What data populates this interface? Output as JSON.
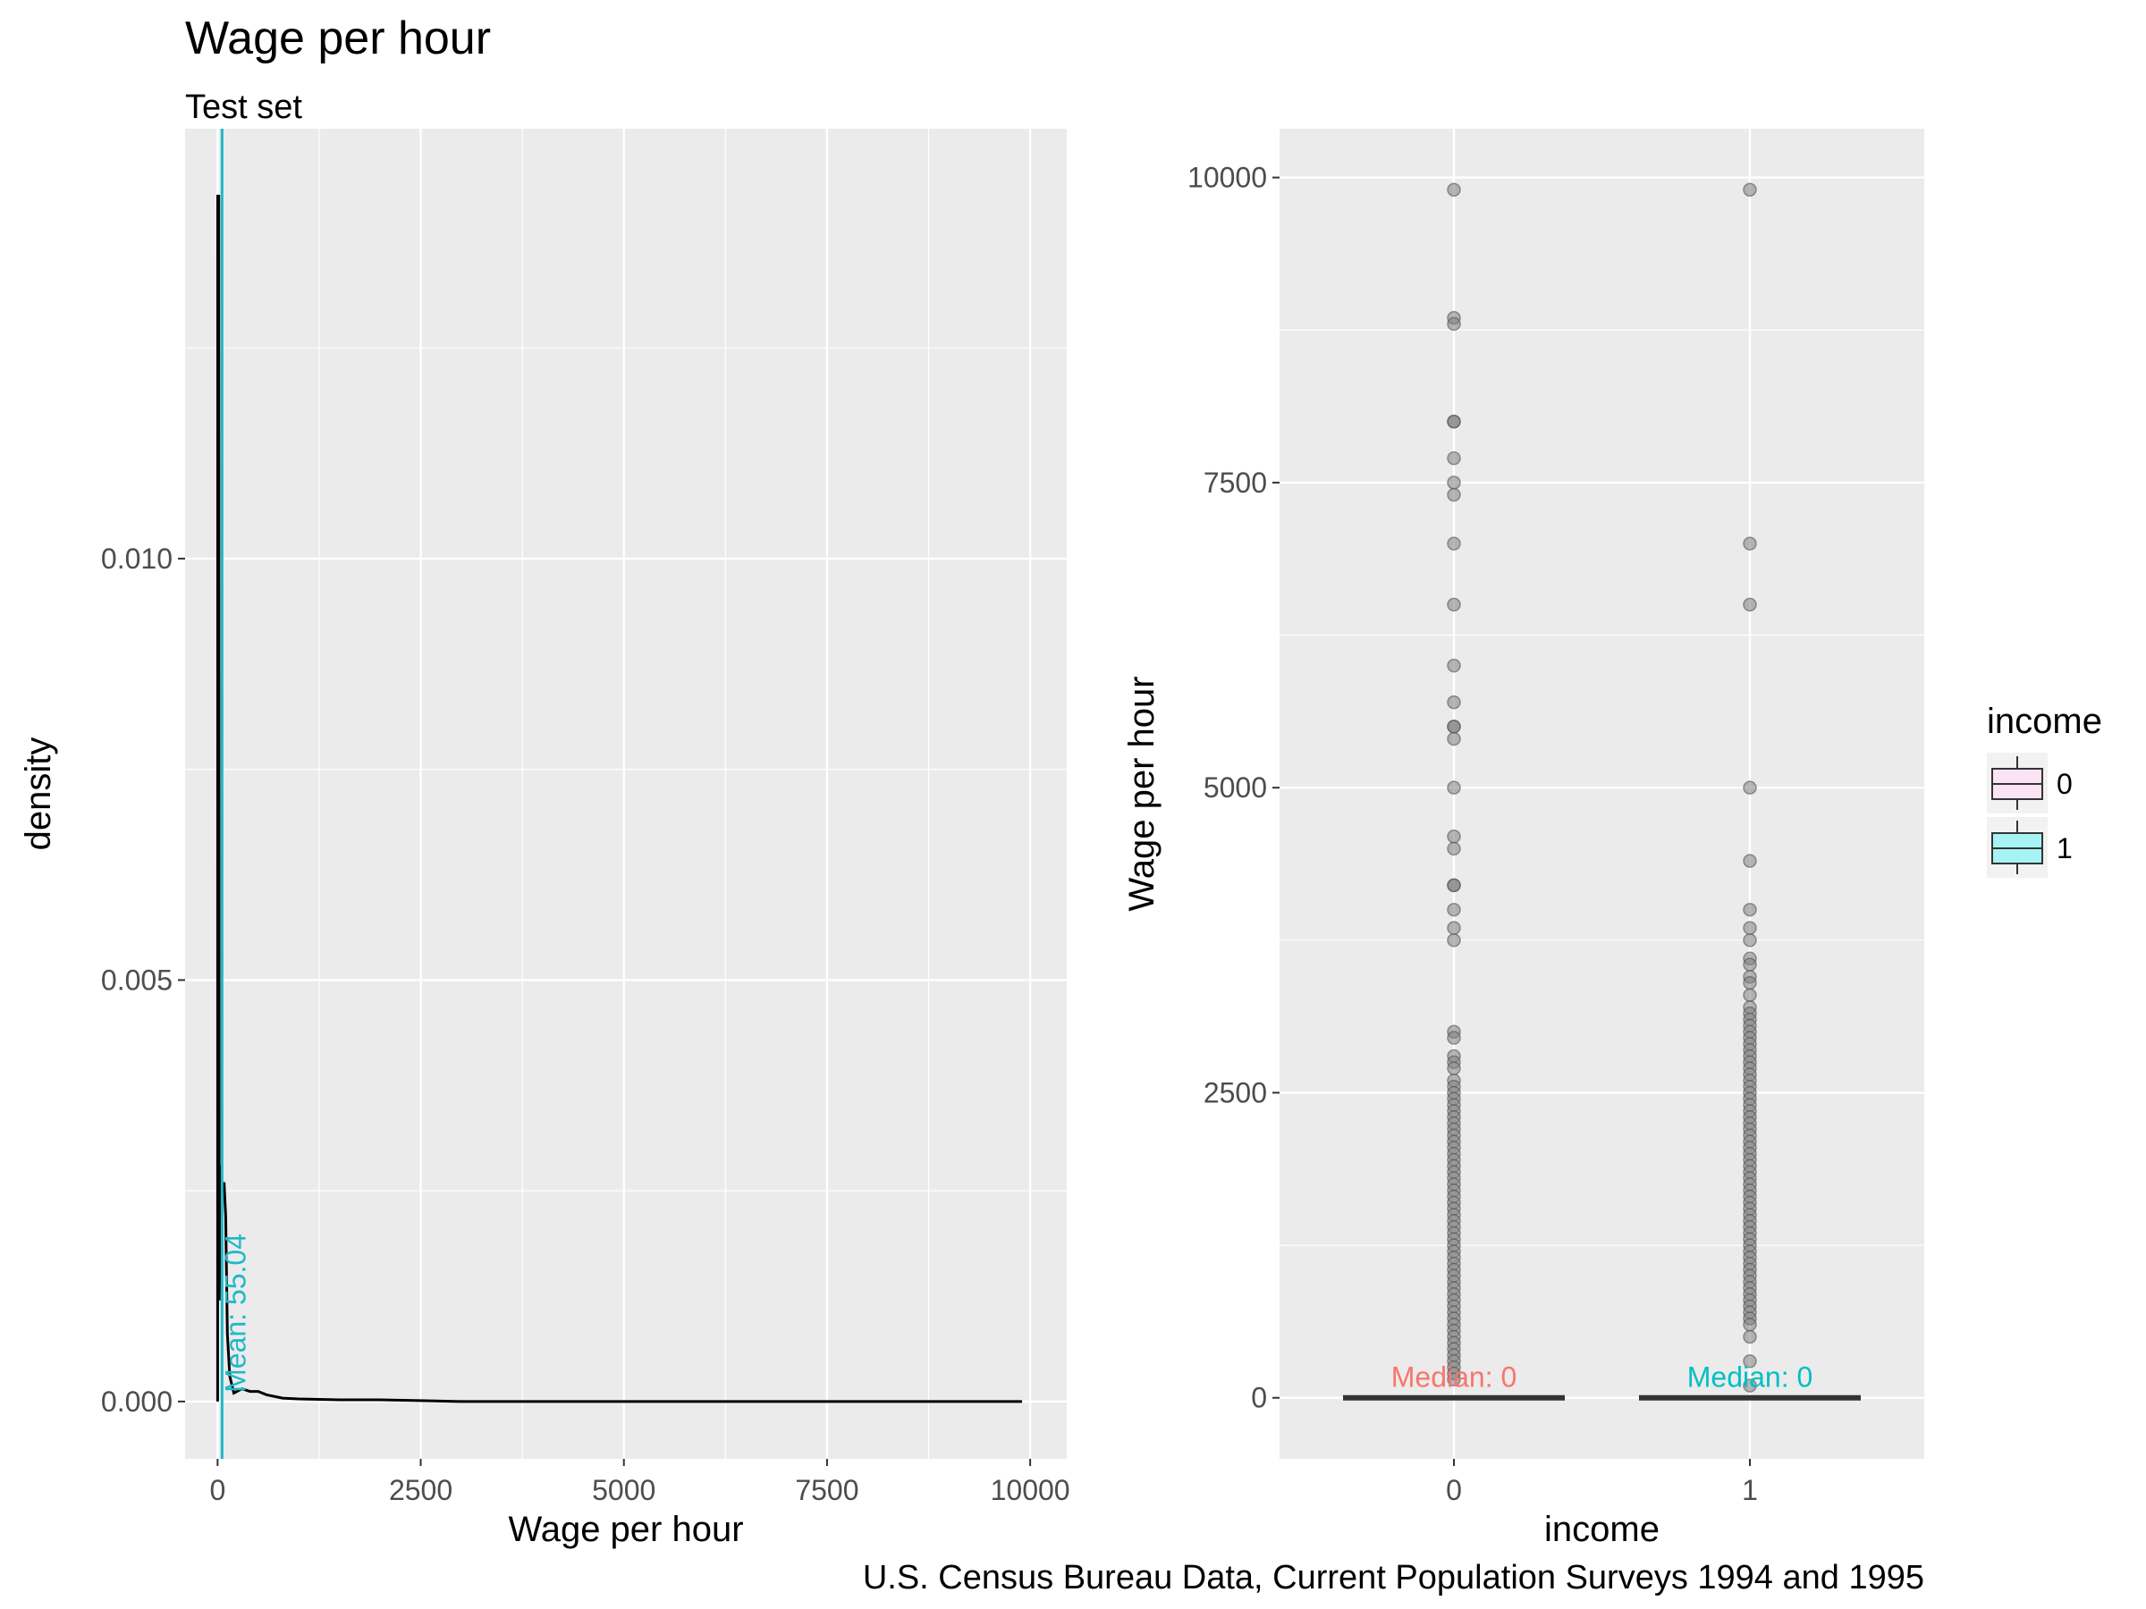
{
  "title": "Wage per hour",
  "subtitle": "Test set",
  "caption": "U.S. Census Bureau Data, Current Population Surveys 1994 and 1995",
  "chart_data": [
    {
      "type": "density",
      "xlabel": "Wage per hour",
      "ylabel": "density",
      "xlim": [
        -400,
        10450
      ],
      "ylim": [
        -0.00068,
        0.0151
      ],
      "x_ticks": [
        0,
        2500,
        5000,
        7500,
        10000
      ],
      "x_tick_labels": [
        "0",
        "2500",
        "5000",
        "7500",
        "10000"
      ],
      "y_ticks": [
        0.0,
        0.005,
        0.01
      ],
      "y_tick_labels": [
        "0.000",
        "0.005",
        "0.010"
      ],
      "grid": true,
      "density_curve": {
        "x": [
          0,
          2,
          5,
          8,
          10,
          15,
          20,
          40,
          60,
          80,
          100,
          120,
          150,
          200,
          300,
          400,
          500,
          600,
          800,
          1000,
          1500,
          2000,
          2500,
          3000,
          5000,
          7500,
          9900
        ],
        "y": [
          0.0,
          0.0143,
          0.0143,
          0.0025,
          0.0143,
          0.0143,
          0.0012,
          0.0028,
          0.0025,
          0.0026,
          0.0022,
          0.0008,
          0.0003,
          0.0001,
          0.00015,
          0.00012,
          0.00012,
          8e-05,
          4e-05,
          3e-05,
          2e-05,
          2e-05,
          1e-05,
          0.0,
          0.0,
          0.0,
          0.0
        ]
      },
      "mean_line": {
        "value": 55.04,
        "label": "Mean: 55.04",
        "color": "#1fb8c8"
      },
      "colors": {
        "curve": "#000000",
        "mean": "#1fb8c8",
        "panel": "#ebebeb",
        "grid": "#ffffff"
      }
    },
    {
      "type": "boxplot",
      "xlabel": "income",
      "ylabel": "Wage per hour",
      "categories": [
        "0",
        "1"
      ],
      "ylim": [
        -500,
        10400
      ],
      "y_ticks": [
        0,
        2500,
        5000,
        7500,
        10000
      ],
      "y_tick_labels": [
        "0",
        "2500",
        "5000",
        "7500",
        "10000"
      ],
      "grid": true,
      "boxes": [
        {
          "category": "0",
          "min": 0,
          "q1": 0,
          "median": 0,
          "q3": 0,
          "max": 0,
          "median_label": "Median: 0",
          "label_color": "#f8766d"
        },
        {
          "category": "1",
          "min": 0,
          "q1": 0,
          "median": 0,
          "q3": 0,
          "max": 0,
          "median_label": "Median: 0",
          "label_color": "#00bfc4"
        }
      ],
      "outliers": [
        {
          "category": "0",
          "values": [
            9900,
            8850,
            8800,
            8000,
            8000,
            7700,
            7500,
            7400,
            7000,
            6500,
            6000,
            5700,
            5500,
            5500,
            5400,
            5000,
            4600,
            4500,
            4200,
            4200,
            4000,
            3850,
            3750,
            3000,
            2950,
            2800,
            2750,
            2700,
            2600,
            2550,
            2500,
            2450,
            2400,
            2350,
            2300,
            2250,
            2200,
            2150,
            2100,
            2050,
            2000,
            1950,
            1900,
            1850,
            1800,
            1750,
            1700,
            1650,
            1600,
            1550,
            1500,
            1450,
            1400,
            1350,
            1300,
            1250,
            1200,
            1150,
            1100,
            1050,
            1000,
            950,
            900,
            850,
            800,
            750,
            700,
            650,
            600,
            550,
            500,
            450,
            400,
            350,
            300,
            250,
            200,
            150
          ]
        },
        {
          "category": "1",
          "values": [
            9900,
            7000,
            6500,
            5000,
            4400,
            4000,
            3850,
            3750,
            3600,
            3550,
            3450,
            3400,
            3300,
            3200,
            3150,
            3100,
            3050,
            3000,
            2950,
            2900,
            2850,
            2800,
            2750,
            2700,
            2650,
            2600,
            2550,
            2500,
            2450,
            2400,
            2350,
            2300,
            2250,
            2200,
            2150,
            2100,
            2050,
            2000,
            1950,
            1900,
            1850,
            1800,
            1750,
            1700,
            1650,
            1600,
            1550,
            1500,
            1450,
            1400,
            1350,
            1300,
            1250,
            1200,
            1150,
            1100,
            1050,
            1000,
            950,
            900,
            850,
            800,
            750,
            700,
            650,
            600,
            500,
            300,
            100
          ]
        }
      ],
      "legend": {
        "title": "income",
        "position": "right",
        "entries": [
          {
            "label": "0",
            "fill": "#fbe3f5"
          },
          {
            "label": "1",
            "fill": "#a6f2f4"
          }
        ]
      },
      "colors": {
        "point": "#7f7f7f",
        "box_line": "#333333",
        "panel": "#ebebeb",
        "grid": "#ffffff"
      }
    }
  ]
}
